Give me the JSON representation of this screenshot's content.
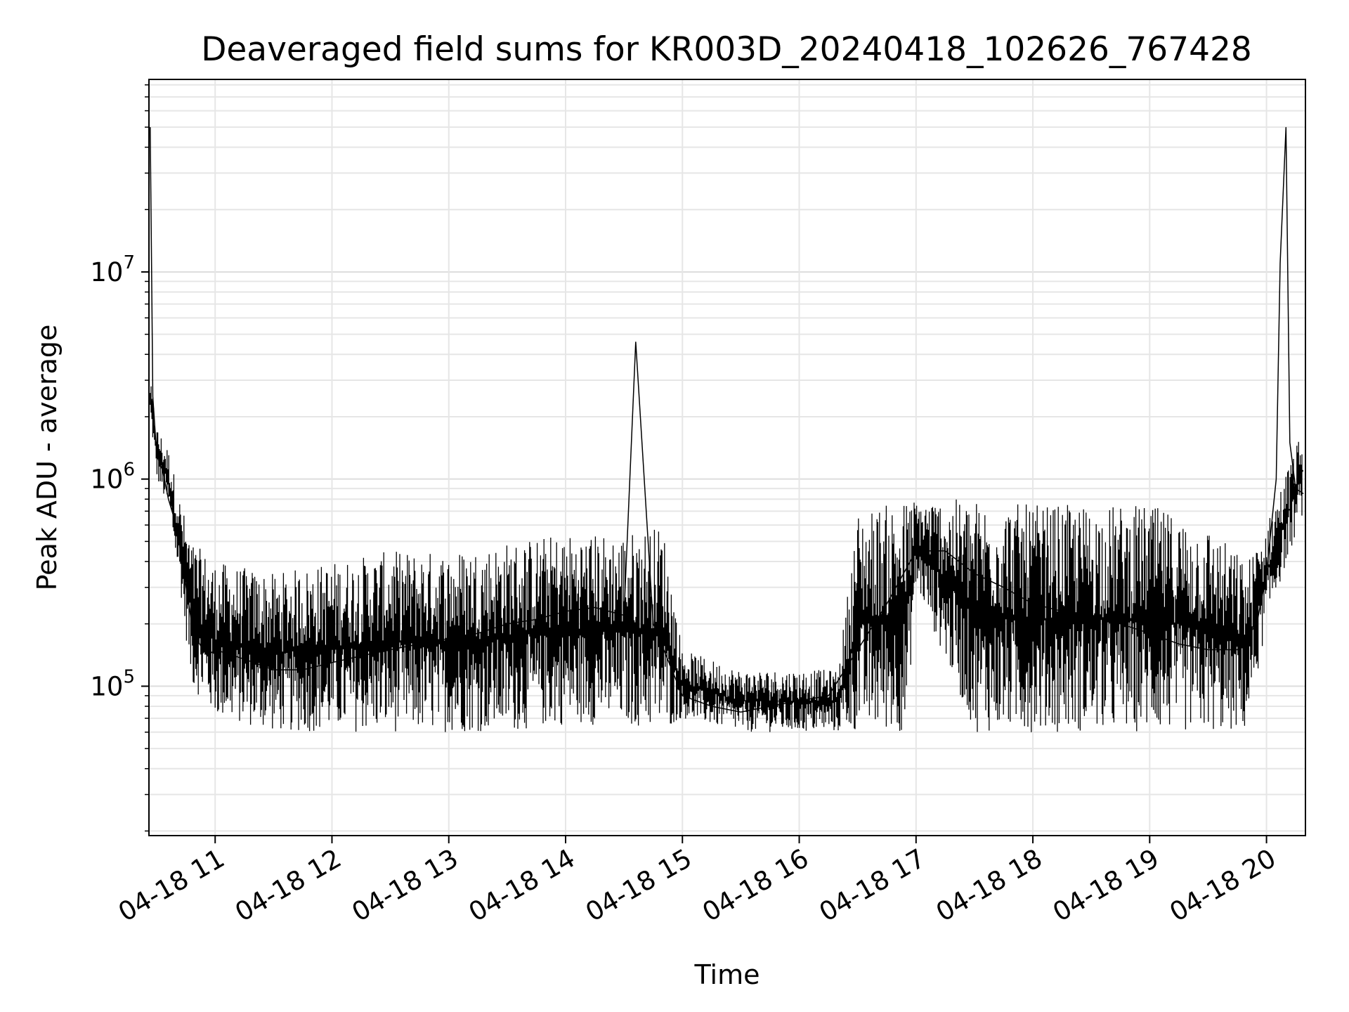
{
  "chart_data": {
    "type": "line",
    "title": "Deaveraged field sums for KR003D_20240418_102626_767428",
    "xlabel": "Time",
    "ylabel": "Peak ADU - average",
    "yscale": "log",
    "grid": true,
    "ylim": [
      19000,
      85000000
    ],
    "xlim": [
      "2024-04-18 10:26:00",
      "2024-04-18 20:20:00"
    ],
    "x_ticks": [
      {
        "value": "2024-04-18 11:00",
        "label": "04-18 11"
      },
      {
        "value": "2024-04-18 12:00",
        "label": "04-18 12"
      },
      {
        "value": "2024-04-18 13:00",
        "label": "04-18 13"
      },
      {
        "value": "2024-04-18 14:00",
        "label": "04-18 14"
      },
      {
        "value": "2024-04-18 15:00",
        "label": "04-18 15"
      },
      {
        "value": "2024-04-18 16:00",
        "label": "04-18 16"
      },
      {
        "value": "2024-04-18 17:00",
        "label": "04-18 17"
      },
      {
        "value": "2024-04-18 18:00",
        "label": "04-18 18"
      },
      {
        "value": "2024-04-18 19:00",
        "label": "04-18 19"
      },
      {
        "value": "2024-04-18 20:00",
        "label": "04-18 20"
      }
    ],
    "y_ticks": [
      {
        "value": 100000,
        "base": "10",
        "exp": "5"
      },
      {
        "value": 1000000,
        "base": "10",
        "exp": "6"
      },
      {
        "value": 10000000,
        "base": "10",
        "exp": "7"
      }
    ],
    "series": [
      {
        "color": "#000000",
        "x": [
          "2024-04-18 10:26:40",
          "2024-04-18 10:28:00",
          "2024-04-18 10:30:00",
          "2024-04-18 10:33:00",
          "2024-04-18 10:36:00",
          "2024-04-18 10:40:00",
          "2024-04-18 10:44:00",
          "2024-04-18 10:48:00",
          "2024-04-18 10:52:00",
          "2024-04-18 10:56:00",
          "2024-04-18 11:00:00",
          "2024-04-18 11:10:00",
          "2024-04-18 11:20:00",
          "2024-04-18 11:30:00",
          "2024-04-18 11:45:00",
          "2024-04-18 12:00:00",
          "2024-04-18 12:15:00",
          "2024-04-18 12:30:00",
          "2024-04-18 12:45:00",
          "2024-04-18 13:00:00",
          "2024-04-18 13:15:00",
          "2024-04-18 13:30:00",
          "2024-04-18 13:45:00",
          "2024-04-18 14:00:00",
          "2024-04-18 14:15:00",
          "2024-04-18 14:30:00",
          "2024-04-18 14:36:00",
          "2024-04-18 14:45:00",
          "2024-04-18 15:00:00",
          "2024-04-18 15:15:00",
          "2024-04-18 15:30:00",
          "2024-04-18 15:45:00",
          "2024-04-18 16:00:00",
          "2024-04-18 16:15:00",
          "2024-04-18 16:30:00",
          "2024-04-18 16:45:00",
          "2024-04-18 17:00:00",
          "2024-04-18 17:15:00",
          "2024-04-18 17:30:00",
          "2024-04-18 17:45:00",
          "2024-04-18 18:00:00",
          "2024-04-18 18:15:00",
          "2024-04-18 18:30:00",
          "2024-04-18 18:45:00",
          "2024-04-18 19:00:00",
          "2024-04-18 19:15:00",
          "2024-04-18 19:30:00",
          "2024-04-18 19:45:00",
          "2024-04-18 19:55:00",
          "2024-04-18 20:00:00",
          "2024-04-18 20:05:00",
          "2024-04-18 20:07:00",
          "2024-04-18 20:10:00",
          "2024-04-18 20:12:00",
          "2024-04-18 20:15:00",
          "2024-04-18 20:19:00"
        ],
        "y": [
          50000000,
          2500000,
          1300000,
          1100000,
          800000,
          600000,
          350000,
          200000,
          160000,
          140000,
          150000,
          140000,
          130000,
          120000,
          120000,
          130000,
          140000,
          150000,
          160000,
          170000,
          180000,
          200000,
          210000,
          230000,
          240000,
          220000,
          4600000,
          200000,
          90000,
          80000,
          75000,
          80000,
          85000,
          90000,
          150000,
          250000,
          450000,
          450000,
          350000,
          300000,
          250000,
          230000,
          220000,
          200000,
          180000,
          160000,
          150000,
          150000,
          200000,
          350000,
          1000000,
          11000000,
          50000000,
          1500000,
          900000,
          850000
        ]
      }
    ],
    "noise_band": {
      "x": [
        "2024-04-18 10:26:40",
        "2024-04-18 10:30:00",
        "2024-04-18 10:36:00",
        "2024-04-18 10:42:00",
        "2024-04-18 10:48:00",
        "2024-04-18 11:00:00",
        "2024-04-18 11:30:00",
        "2024-04-18 12:00:00",
        "2024-04-18 12:30:00",
        "2024-04-18 13:00:00",
        "2024-04-18 13:30:00",
        "2024-04-18 14:00:00",
        "2024-04-18 14:30:00",
        "2024-04-18 14:50:00",
        "2024-04-18 15:00:00",
        "2024-04-18 15:30:00",
        "2024-04-18 16:00:00",
        "2024-04-18 16:20:00",
        "2024-04-18 16:30:00",
        "2024-04-18 16:55:00",
        "2024-04-18 17:00:00",
        "2024-04-18 17:30:00",
        "2024-04-18 18:00:00",
        "2024-04-18 18:30:00",
        "2024-04-18 19:00:00",
        "2024-04-18 19:30:00",
        "2024-04-18 19:50:00",
        "2024-04-18 20:00:00",
        "2024-04-18 20:19:00"
      ],
      "low": [
        2000000,
        1000000,
        700000,
        300000,
        100000,
        70000,
        60000,
        60000,
        60000,
        60000,
        60000,
        65000,
        65000,
        60000,
        70000,
        60000,
        60000,
        60000,
        60000,
        60000,
        300000,
        60000,
        60000,
        60000,
        60000,
        60000,
        60000,
        200000,
        700000
      ],
      "high": [
        3000000,
        1800000,
        1400000,
        800000,
        500000,
        400000,
        350000,
        400000,
        450000,
        450000,
        500000,
        550000,
        550000,
        600000,
        150000,
        120000,
        120000,
        120000,
        700000,
        800000,
        800000,
        800000,
        750000,
        750000,
        750000,
        600000,
        400000,
        600000,
        1800000
      ]
    }
  }
}
